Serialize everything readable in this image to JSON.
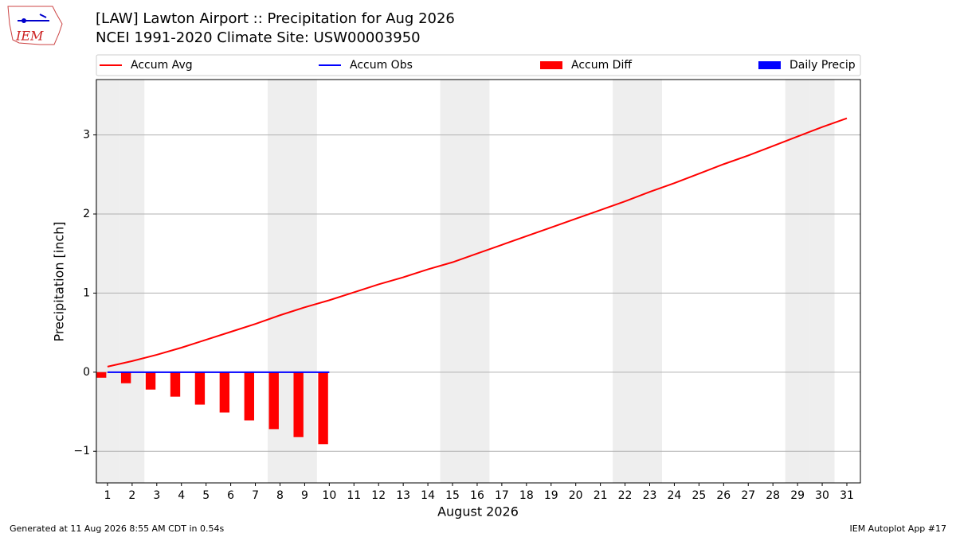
{
  "chart_data": {
    "type": "combo",
    "title": "[LAW] Lawton Airport :: Precipitation for Aug 2026",
    "subtitle": "NCEI 1991-2020 Climate Site: USW00003950",
    "logo_text": "IEM",
    "xlabel": "August 2026",
    "ylabel": "Precipitation [inch]",
    "footer_left": "Generated at 11 Aug 2026 8:55 AM CDT in 0.54s",
    "footer_right": "IEM Autoplot App #17",
    "x": [
      1,
      2,
      3,
      4,
      5,
      6,
      7,
      8,
      9,
      10,
      11,
      12,
      13,
      14,
      15,
      16,
      17,
      18,
      19,
      20,
      21,
      22,
      23,
      24,
      25,
      26,
      27,
      28,
      29,
      30,
      31
    ],
    "xlim": [
      0.55,
      31.55
    ],
    "xticks": [
      1,
      2,
      3,
      4,
      5,
      6,
      7,
      8,
      9,
      10,
      11,
      12,
      13,
      14,
      15,
      16,
      17,
      18,
      19,
      20,
      21,
      22,
      23,
      24,
      25,
      26,
      27,
      28,
      29,
      30,
      31
    ],
    "ylim": [
      -1.4,
      3.7
    ],
    "yticks": [
      {
        "value": -1,
        "label": "−1"
      },
      0,
      1,
      2,
      3
    ],
    "grid": true,
    "shaded_days": [
      1,
      2,
      8,
      9,
      15,
      16,
      22,
      23,
      29,
      30
    ],
    "shade_color": "#eeeeee",
    "series": [
      {
        "name": "Accum Avg",
        "type": "line",
        "color": "#ff0000",
        "values": [
          0.07,
          0.14,
          0.22,
          0.31,
          0.41,
          0.51,
          0.61,
          0.72,
          0.82,
          0.91,
          1.01,
          1.11,
          1.2,
          1.3,
          1.39,
          1.5,
          1.61,
          1.72,
          1.83,
          1.94,
          2.05,
          2.16,
          2.28,
          2.39,
          2.51,
          2.63,
          2.74,
          2.86,
          2.98,
          3.1,
          3.21
        ]
      },
      {
        "name": "Accum Obs",
        "type": "line",
        "color": "#0000ff",
        "values": [
          0,
          0,
          0,
          0,
          0,
          0,
          0,
          0,
          0,
          0,
          null,
          null,
          null,
          null,
          null,
          null,
          null,
          null,
          null,
          null,
          null,
          null,
          null,
          null,
          null,
          null,
          null,
          null,
          null,
          null,
          null
        ]
      },
      {
        "name": "Accum Diff",
        "type": "bar",
        "offset": -1,
        "color": "#ff0000",
        "values": [
          -0.07,
          -0.14,
          -0.22,
          -0.31,
          -0.41,
          -0.51,
          -0.61,
          -0.72,
          -0.82,
          -0.91,
          null,
          null,
          null,
          null,
          null,
          null,
          null,
          null,
          null,
          null,
          null,
          null,
          null,
          null,
          null,
          null,
          null,
          null,
          null,
          null,
          null
        ]
      },
      {
        "name": "Daily Precip",
        "type": "bar",
        "offset": 1,
        "color": "#0000ff",
        "values": [
          0,
          0,
          0,
          0,
          0,
          0,
          0,
          0,
          0,
          0,
          null,
          null,
          null,
          null,
          null,
          null,
          null,
          null,
          null,
          null,
          null,
          null,
          null,
          null,
          null,
          null,
          null,
          null,
          null,
          null,
          null
        ]
      }
    ]
  }
}
